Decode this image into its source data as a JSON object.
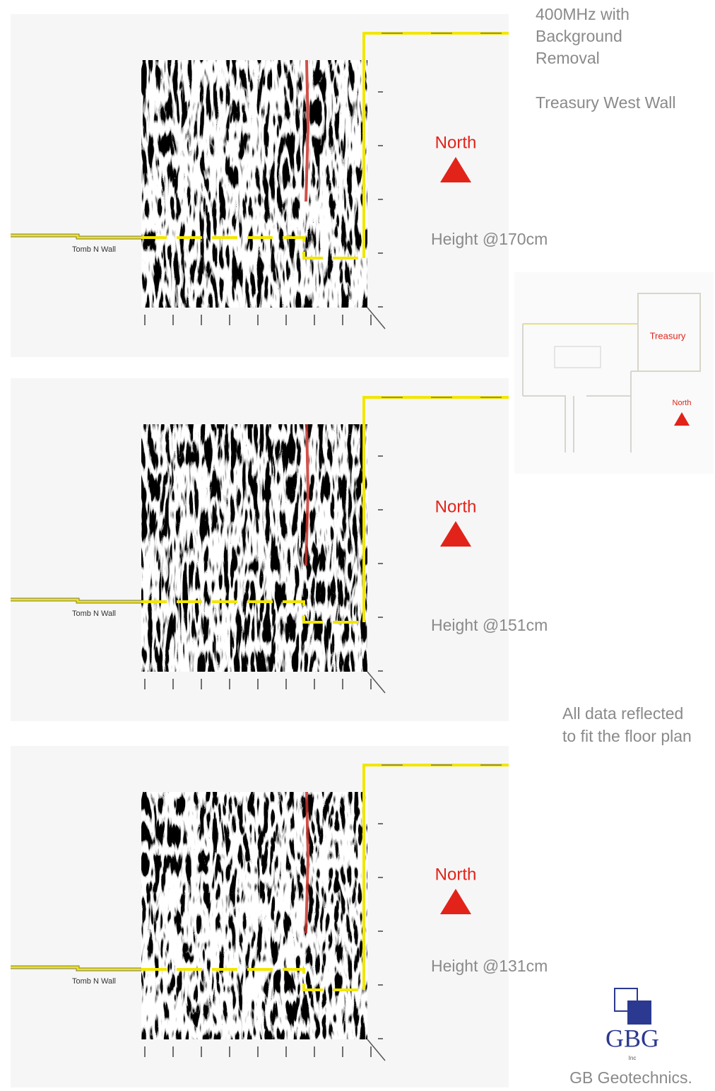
{
  "header": {
    "title_lines": [
      "400MHz with",
      "Background",
      "Removal"
    ],
    "subtitle": "Treasury West Wall"
  },
  "panels": [
    {
      "north": "North",
      "height": "Height @170cm",
      "wall_label": "Tomb N Wall"
    },
    {
      "north": "North",
      "height": "Height @151cm",
      "wall_label": "Tomb N Wall"
    },
    {
      "north": "North",
      "height": "Height @131cm",
      "wall_label": "Tomb N Wall"
    }
  ],
  "floor_plan": {
    "building": "Treasury",
    "north": "North"
  },
  "note": [
    "All data reflected",
    "to fit the floor plan"
  ],
  "logo": {
    "mark": "GBG",
    "sub": "Inc",
    "company": "GB Geotechnics."
  }
}
